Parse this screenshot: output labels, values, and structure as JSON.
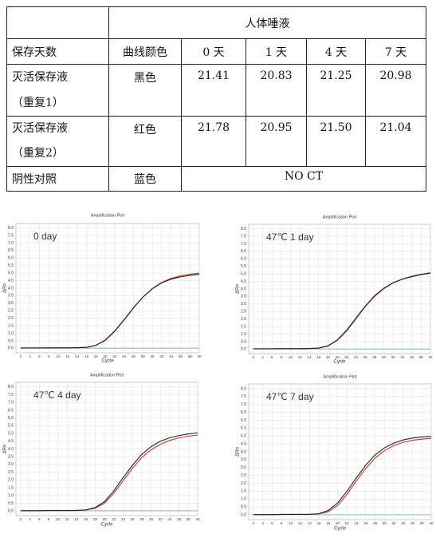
{
  "table": {
    "header": "人体唾液",
    "columns": [
      "保存天数",
      "曲线颜色",
      "0 天",
      "1 天",
      "4 天",
      "7 天"
    ],
    "rows": [
      {
        "sample": [
          "灭活保存液",
          "（重复1）"
        ],
        "color": "黑色",
        "values": [
          "21.41",
          "20.83",
          "21.25",
          "20.98"
        ]
      },
      {
        "sample": [
          "灭活保存液",
          "（重复2）"
        ],
        "color": "红色",
        "values": [
          "21.78",
          "20.95",
          "21.50",
          "21.04"
        ]
      },
      {
        "sample": [
          "阴性对照"
        ],
        "color": "蓝色",
        "result": "NO CT"
      }
    ]
  },
  "chart_data": [
    {
      "type": "line",
      "title": "Amplification Plot",
      "annotation": "0 day",
      "x_label": "Cycle",
      "y_label": "ΔRn",
      "x": [
        2,
        4,
        6,
        8,
        10,
        12,
        14,
        16,
        18,
        20,
        22,
        24,
        26,
        28,
        30,
        32,
        34,
        36,
        38,
        40
      ],
      "series": [
        {
          "name": "黑色",
          "color": "#222222",
          "values": [
            0.02,
            0.02,
            0.02,
            0.03,
            0.03,
            0.03,
            0.04,
            0.06,
            0.2,
            0.55,
            1.15,
            1.9,
            2.7,
            3.4,
            3.95,
            4.35,
            4.6,
            4.75,
            4.85,
            4.92
          ]
        },
        {
          "name": "红色",
          "color": "#c0392b",
          "values": [
            0.02,
            0.02,
            0.02,
            0.03,
            0.03,
            0.03,
            0.04,
            0.06,
            0.19,
            0.53,
            1.12,
            1.87,
            2.68,
            3.4,
            3.97,
            4.38,
            4.65,
            4.82,
            4.92,
            5.0
          ]
        },
        {
          "name": "蓝色",
          "color": "#8fb8e0",
          "values": [
            0.01,
            0.01,
            0.01,
            0.01,
            0.01,
            0.01,
            0.01,
            0.01,
            0.01,
            0.01,
            0.01,
            0.01,
            0.01,
            0.01,
            0.01,
            0.01,
            0.01,
            0.01,
            0.01,
            0.01
          ]
        }
      ],
      "xlim": [
        1,
        40
      ],
      "ylim": [
        -0.3,
        8.3
      ],
      "xticks": [
        2,
        4,
        6,
        8,
        10,
        12,
        14,
        16,
        18,
        20,
        22,
        24,
        26,
        28,
        30,
        32,
        34,
        36,
        38,
        40
      ],
      "yticks": [
        {
          "value": 0,
          "label": "0.0"
        },
        0.5,
        {
          "value": 1,
          "label": "1.0"
        },
        1.5,
        {
          "value": 2,
          "label": "2.0"
        },
        2.5,
        {
          "value": 3,
          "label": "3.0"
        },
        3.5,
        {
          "value": 4,
          "label": "4.0"
        },
        4.5,
        {
          "value": 5,
          "label": "5.0"
        },
        5.5,
        {
          "value": 6,
          "label": "6.0"
        },
        6.5,
        {
          "value": 7,
          "label": "7.0"
        },
        7.5,
        {
          "value": 8,
          "label": "8.0"
        }
      ],
      "grid": true
    },
    {
      "type": "line",
      "title": "Amplification Plot",
      "annotation": "47℃ 1 day",
      "x_label": "Cycle",
      "y_label": "ΔRn",
      "x": [
        2,
        4,
        6,
        8,
        10,
        12,
        14,
        16,
        18,
        20,
        22,
        24,
        26,
        28,
        30,
        32,
        34,
        36,
        38,
        40
      ],
      "series": [
        {
          "name": "黑色",
          "color": "#222222",
          "values": [
            0.02,
            0.02,
            0.02,
            0.03,
            0.03,
            0.03,
            0.04,
            0.07,
            0.22,
            0.6,
            1.25,
            2.05,
            2.85,
            3.55,
            4.05,
            4.42,
            4.65,
            4.82,
            4.95,
            5.05
          ]
        },
        {
          "name": "红色",
          "color": "#c0392b",
          "values": [
            0.02,
            0.02,
            0.02,
            0.03,
            0.03,
            0.03,
            0.04,
            0.06,
            0.2,
            0.57,
            1.2,
            2.0,
            2.82,
            3.5,
            4.02,
            4.4,
            4.66,
            4.85,
            4.98,
            5.08
          ]
        },
        {
          "name": "蓝色",
          "color": "#8fb8e0",
          "values": [
            0.01,
            0.01,
            0.01,
            0.01,
            0.01,
            0.01,
            0.01,
            0.01,
            0.01,
            0.01,
            0.01,
            0.01,
            0.01,
            0.01,
            0.01,
            0.01,
            0.01,
            0.01,
            0.01,
            0.01
          ]
        }
      ],
      "xlim": [
        1,
        40
      ],
      "ylim": [
        -0.3,
        8.3
      ],
      "xticks": [
        2,
        4,
        6,
        8,
        10,
        12,
        14,
        16,
        18,
        20,
        22,
        24,
        26,
        28,
        30,
        32,
        34,
        36,
        38,
        40
      ],
      "yticks": [
        {
          "value": 0,
          "label": "0.0"
        },
        0.5,
        {
          "value": 1,
          "label": "1.0"
        },
        1.5,
        {
          "value": 2,
          "label": "2.0"
        },
        2.5,
        {
          "value": 3,
          "label": "3.0"
        },
        3.5,
        {
          "value": 4,
          "label": "4.0"
        },
        4.5,
        {
          "value": 5,
          "label": "5.0"
        },
        5.5,
        {
          "value": 6,
          "label": "6.0"
        },
        6.5,
        {
          "value": 7,
          "label": "7.0"
        },
        7.5,
        {
          "value": 8,
          "label": "8.0"
        }
      ],
      "grid": true
    },
    {
      "type": "line",
      "title": "Amplification Plot",
      "annotation": "47℃ 4 day",
      "x_label": "Cycle",
      "y_label": "ΔRn",
      "x": [
        2,
        4,
        6,
        8,
        10,
        12,
        14,
        16,
        18,
        20,
        22,
        24,
        26,
        28,
        30,
        32,
        34,
        36,
        38,
        40
      ],
      "series": [
        {
          "name": "黑色",
          "color": "#222222",
          "values": [
            0.02,
            0.02,
            0.02,
            0.03,
            0.03,
            0.03,
            0.04,
            0.07,
            0.22,
            0.6,
            1.3,
            2.15,
            2.95,
            3.65,
            4.15,
            4.5,
            4.72,
            4.87,
            4.97,
            5.05
          ]
        },
        {
          "name": "红色",
          "color": "#c0392b",
          "values": [
            0.02,
            0.02,
            0.02,
            0.03,
            0.03,
            0.03,
            0.04,
            0.06,
            0.18,
            0.5,
            1.15,
            1.95,
            2.75,
            3.45,
            3.95,
            4.3,
            4.55,
            4.72,
            4.83,
            4.9
          ]
        },
        {
          "name": "蓝色",
          "color": "#8fb8e0",
          "values": [
            0.01,
            0.01,
            0.01,
            0.01,
            0.01,
            0.01,
            0.01,
            0.01,
            0.01,
            0.01,
            0.01,
            0.01,
            0.01,
            0.01,
            0.01,
            0.01,
            0.01,
            0.01,
            0.01,
            0.01
          ]
        }
      ],
      "xlim": [
        1,
        40
      ],
      "ylim": [
        -0.3,
        8.3
      ],
      "xticks": [
        2,
        4,
        6,
        8,
        10,
        12,
        14,
        16,
        18,
        20,
        22,
        24,
        26,
        28,
        30,
        32,
        34,
        36,
        38,
        40
      ],
      "yticks": [
        {
          "value": 0,
          "label": "0.0"
        },
        0.5,
        {
          "value": 1,
          "label": "1.0"
        },
        1.5,
        {
          "value": 2,
          "label": "2.0"
        },
        2.5,
        {
          "value": 3,
          "label": "3.0"
        },
        3.5,
        {
          "value": 4,
          "label": "4.0"
        },
        4.5,
        {
          "value": 5,
          "label": "5.0"
        },
        5.5,
        {
          "value": 6,
          "label": "6.0"
        },
        6.5,
        {
          "value": 7,
          "label": "7.0"
        },
        7.5,
        {
          "value": 8,
          "label": "8.0"
        }
      ],
      "grid": true
    },
    {
      "type": "line",
      "title": "Amplification Plot",
      "annotation": "47℃ 7 day",
      "x_label": "Cycle",
      "y_label": "ΔRn",
      "x": [
        2,
        4,
        6,
        8,
        10,
        12,
        14,
        16,
        18,
        20,
        22,
        24,
        26,
        28,
        30,
        32,
        34,
        36,
        38,
        40
      ],
      "series": [
        {
          "name": "黑色",
          "color": "#222222",
          "values": [
            0.02,
            0.02,
            0.02,
            0.03,
            0.03,
            0.03,
            0.04,
            0.08,
            0.28,
            0.75,
            1.5,
            2.35,
            3.15,
            3.8,
            4.25,
            4.55,
            4.75,
            4.87,
            4.94,
            4.98
          ]
        },
        {
          "name": "红色",
          "color": "#c0392b",
          "values": [
            0.02,
            0.02,
            0.02,
            0.03,
            0.03,
            0.03,
            0.04,
            0.06,
            0.2,
            0.6,
            1.3,
            2.15,
            2.95,
            3.6,
            4.08,
            4.4,
            4.6,
            4.73,
            4.8,
            4.85
          ]
        },
        {
          "name": "蓝色",
          "color": "#8fb8e0",
          "values": [
            0.01,
            0.01,
            0.01,
            0.01,
            0.01,
            0.01,
            0.01,
            0.01,
            0.01,
            0.01,
            0.01,
            0.01,
            0.01,
            0.01,
            0.01,
            0.01,
            0.01,
            0.01,
            0.01,
            0.01
          ]
        }
      ],
      "xlim": [
        1,
        40
      ],
      "ylim": [
        -0.3,
        8.3
      ],
      "xticks": [
        2,
        4,
        6,
        8,
        10,
        12,
        14,
        16,
        18,
        20,
        22,
        24,
        26,
        28,
        30,
        32,
        34,
        36,
        38,
        40
      ],
      "yticks": [
        {
          "value": 0,
          "label": "0.0"
        },
        0.5,
        {
          "value": 1,
          "label": "1.0"
        },
        1.5,
        {
          "value": 2,
          "label": "2.0"
        },
        2.5,
        {
          "value": 3,
          "label": "3.0"
        },
        3.5,
        {
          "value": 4,
          "label": "4.0"
        },
        4.5,
        {
          "value": 5,
          "label": "5.0"
        },
        5.5,
        {
          "value": 6,
          "label": "6.0"
        },
        6.5,
        {
          "value": 7,
          "label": "7.0"
        },
        7.5,
        {
          "value": 8,
          "label": "8.0"
        }
      ],
      "grid": true
    }
  ]
}
